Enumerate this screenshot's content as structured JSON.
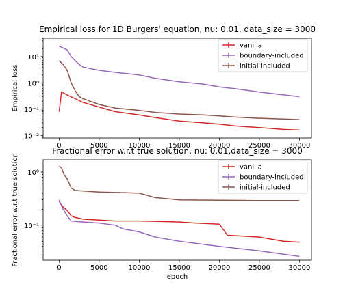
{
  "chart_data": [
    {
      "type": "line",
      "title": "Empirical loss for 1D Burgers' equation, nu: 0.01, data_size = 3000",
      "xlabel": "",
      "ylabel": "Empirical loss",
      "yscale": "log",
      "xlim": [
        -2000,
        31500
      ],
      "ylim": [
        0.008,
        50
      ],
      "x_ticks": [
        0,
        5000,
        10000,
        15000,
        20000,
        25000,
        30000
      ],
      "x_tick_labels": [
        "0",
        "5000",
        "10000",
        "15000",
        "20000",
        "25000",
        "30000"
      ],
      "y_ticks": [
        0.01,
        0.1,
        1,
        10
      ],
      "y_tick_labels": [
        "10⁻²",
        "10⁻¹",
        "10⁰",
        "10¹"
      ],
      "legend_position": "top-right",
      "series": [
        {
          "name": "vanilla",
          "color": "#d62728",
          "x": [
            0,
            300,
            1000,
            2000,
            3000,
            5000,
            7000,
            10000,
            12000,
            15000,
            18000,
            20000,
            22000,
            25000,
            28000,
            30000
          ],
          "y": [
            0.08,
            0.45,
            0.35,
            0.25,
            0.18,
            0.12,
            0.08,
            0.06,
            0.048,
            0.035,
            0.03,
            0.027,
            0.023,
            0.02,
            0.017,
            0.016
          ]
        },
        {
          "name": "boundary-included",
          "color": "#9467bd",
          "x": [
            0,
            1000,
            1500,
            2500,
            3000,
            5000,
            7000,
            10000,
            12000,
            15000,
            18000,
            20000,
            22000,
            25000,
            28000,
            30000
          ],
          "y": [
            25,
            18,
            10,
            5,
            4,
            3,
            2.5,
            2,
            1.5,
            1.1,
            0.9,
            0.7,
            0.6,
            0.45,
            0.35,
            0.3
          ]
        },
        {
          "name": "initial-included",
          "color": "#8c564b",
          "x": [
            0,
            500,
            1000,
            1500,
            2000,
            2500,
            3000,
            5000,
            7000,
            10000,
            12000,
            15000,
            18000,
            20000,
            22000,
            25000,
            28000,
            30000
          ],
          "y": [
            7,
            5,
            3,
            1,
            0.5,
            0.3,
            0.25,
            0.15,
            0.11,
            0.09,
            0.075,
            0.065,
            0.06,
            0.055,
            0.05,
            0.045,
            0.042,
            0.04
          ]
        }
      ]
    },
    {
      "type": "line",
      "title": "Fractional error w.r.t true solution, nu: 0.01,data_size = 3000",
      "xlabel": "epoch",
      "ylabel": "Fractional error w.r.t true solution",
      "yscale": "log",
      "xlim": [
        -2000,
        31500
      ],
      "ylim": [
        0.022,
        1.7
      ],
      "x_ticks": [
        0,
        5000,
        10000,
        15000,
        20000,
        25000,
        30000
      ],
      "x_tick_labels": [
        "0",
        "5000",
        "10000",
        "15000",
        "20000",
        "25000",
        "30000"
      ],
      "y_ticks": [
        0.1,
        1
      ],
      "y_tick_labels": [
        "10⁻¹",
        "10⁰"
      ],
      "legend_position": "top-right",
      "series": [
        {
          "name": "vanilla",
          "color": "#d62728",
          "x": [
            0,
            200,
            500,
            1000,
            1500,
            2000,
            3000,
            5000,
            7000,
            10000,
            15000,
            17000,
            20000,
            21000,
            25000,
            28000,
            30000
          ],
          "y": [
            0.28,
            0.25,
            0.22,
            0.19,
            0.15,
            0.14,
            0.13,
            0.125,
            0.12,
            0.12,
            0.115,
            0.11,
            0.105,
            0.065,
            0.06,
            0.05,
            0.048
          ]
        },
        {
          "name": "boundary-included",
          "color": "#9467bd",
          "x": [
            0,
            200,
            500,
            1000,
            1500,
            3000,
            5000,
            7000,
            8000,
            10000,
            12000,
            15000,
            20000,
            25000,
            30000
          ],
          "y": [
            0.3,
            0.25,
            0.2,
            0.15,
            0.12,
            0.115,
            0.11,
            0.1,
            0.085,
            0.075,
            0.06,
            0.05,
            0.04,
            0.033,
            0.026
          ]
        },
        {
          "name": "initial-included",
          "color": "#8c564b",
          "x": [
            0,
            300,
            600,
            1000,
            1500,
            2000,
            3000,
            5000,
            8000,
            10000,
            12000,
            15000,
            20000,
            25000,
            30000
          ],
          "y": [
            1.3,
            1.2,
            0.9,
            0.75,
            0.5,
            0.45,
            0.44,
            0.42,
            0.41,
            0.4,
            0.33,
            0.3,
            0.295,
            0.29,
            0.29
          ]
        }
      ]
    }
  ]
}
